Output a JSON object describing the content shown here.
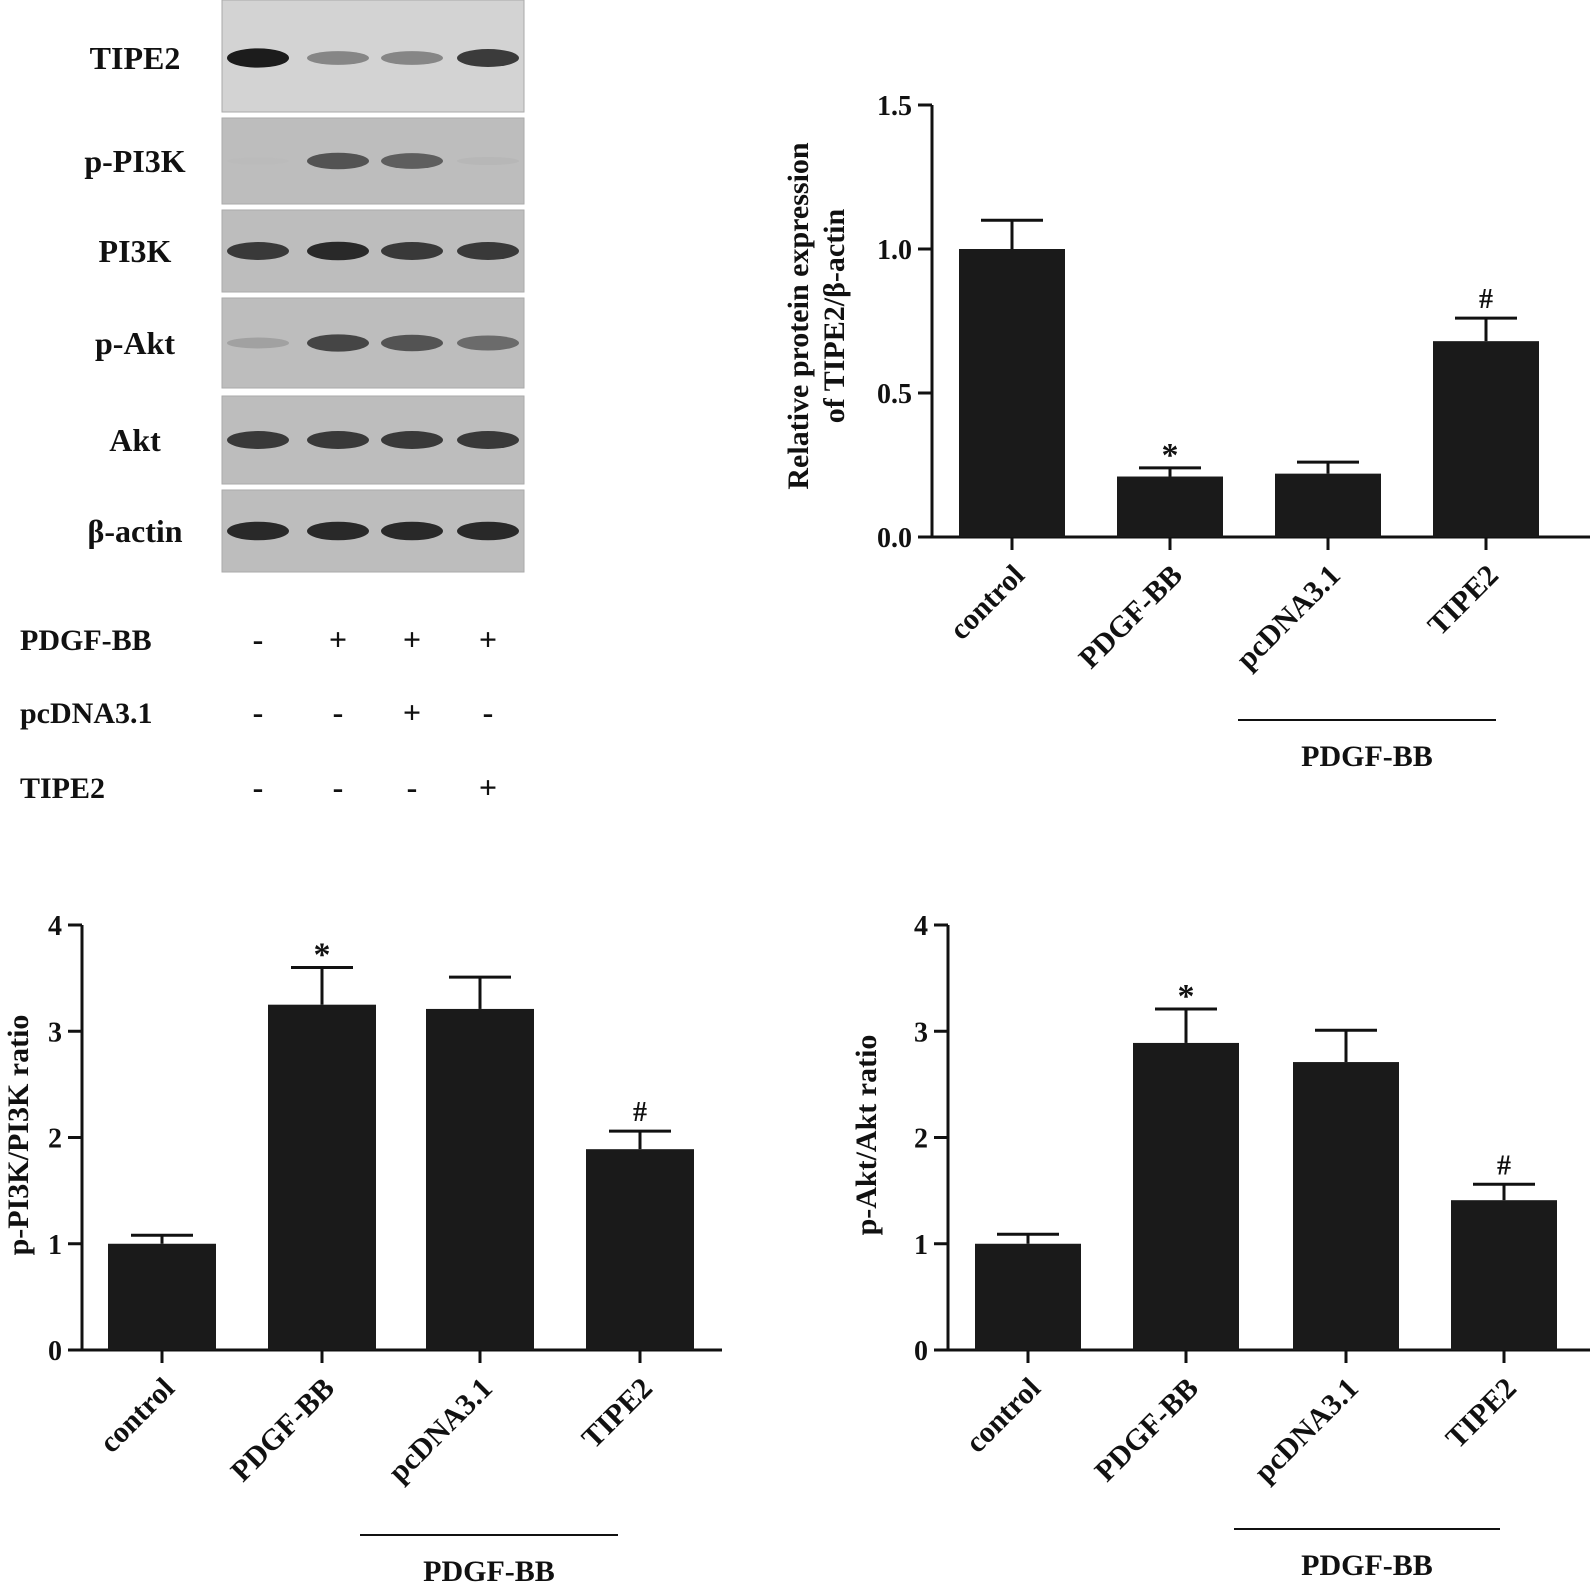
{
  "blot": {
    "rows": [
      {
        "label": "TIPE2",
        "intensity": [
          0.95,
          0.55,
          0.55,
          0.85
        ]
      },
      {
        "label": "p-PI3K",
        "intensity": [
          0.08,
          0.75,
          0.7,
          0.15
        ]
      },
      {
        "label": "PI3K",
        "intensity": [
          0.85,
          0.9,
          0.85,
          0.85
        ]
      },
      {
        "label": "p-Akt",
        "intensity": [
          0.35,
          0.8,
          0.75,
          0.65
        ]
      },
      {
        "label": "Akt",
        "intensity": [
          0.85,
          0.85,
          0.85,
          0.85
        ]
      },
      {
        "label": "β-actin",
        "intensity": [
          0.9,
          0.9,
          0.9,
          0.9
        ]
      }
    ],
    "conditions": [
      {
        "label": "PDGF-BB",
        "signs": [
          "-",
          "+",
          "+",
          "+"
        ]
      },
      {
        "label": "pcDNA3.1",
        "signs": [
          "-",
          "-",
          "+",
          "-"
        ]
      },
      {
        "label": "TIPE2",
        "signs": [
          "-",
          "-",
          "-",
          "+"
        ]
      }
    ]
  },
  "chart_data": [
    {
      "type": "bar",
      "categories": [
        "control",
        "PDGF-BB",
        "pcDNA3.1",
        "TIPE2"
      ],
      "values": [
        1.0,
        0.21,
        0.22,
        0.68
      ],
      "errors": [
        0.1,
        0.03,
        0.04,
        0.08
      ],
      "annotations": [
        "",
        "*",
        "",
        "#"
      ],
      "ylabel_lines": [
        "Relative protein expression",
        "of TIPE2/β-actin"
      ],
      "ylim": [
        0,
        1.5
      ],
      "yticks": [
        0.0,
        0.5,
        1.0,
        1.5
      ],
      "ytick_labels": [
        "0.0",
        "0.5",
        "1.0",
        "1.5"
      ],
      "group_label": "PDGF-BB",
      "grid": false,
      "bar_color": "#1a1a1a"
    },
    {
      "type": "bar",
      "categories": [
        "control",
        "PDGF-BB",
        "pcDNA3.1",
        "TIPE2"
      ],
      "values": [
        1.0,
        3.25,
        3.21,
        1.89
      ],
      "errors": [
        0.08,
        0.35,
        0.3,
        0.17
      ],
      "annotations": [
        "",
        "*",
        "",
        "#"
      ],
      "ylabel_lines": [
        "p-PI3K/PI3K ratio"
      ],
      "ylim": [
        0,
        4
      ],
      "yticks": [
        0,
        1,
        2,
        3,
        4
      ],
      "ytick_labels": [
        "0",
        "1",
        "2",
        "3",
        "4"
      ],
      "group_label": "PDGF-BB",
      "grid": false,
      "bar_color": "#1a1a1a"
    },
    {
      "type": "bar",
      "categories": [
        "control",
        "PDGF-BB",
        "pcDNA3.1",
        "TIPE2"
      ],
      "values": [
        1.0,
        2.89,
        2.71,
        1.41
      ],
      "errors": [
        0.09,
        0.32,
        0.3,
        0.15
      ],
      "annotations": [
        "",
        "*",
        "",
        "#"
      ],
      "ylabel_lines": [
        "p-Akt/Akt ratio"
      ],
      "ylim": [
        0,
        4
      ],
      "yticks": [
        0,
        1,
        2,
        3,
        4
      ],
      "ytick_labels": [
        "0",
        "1",
        "2",
        "3",
        "4"
      ],
      "group_label": "PDGF-BB",
      "grid": false,
      "bar_color": "#1a1a1a"
    }
  ]
}
